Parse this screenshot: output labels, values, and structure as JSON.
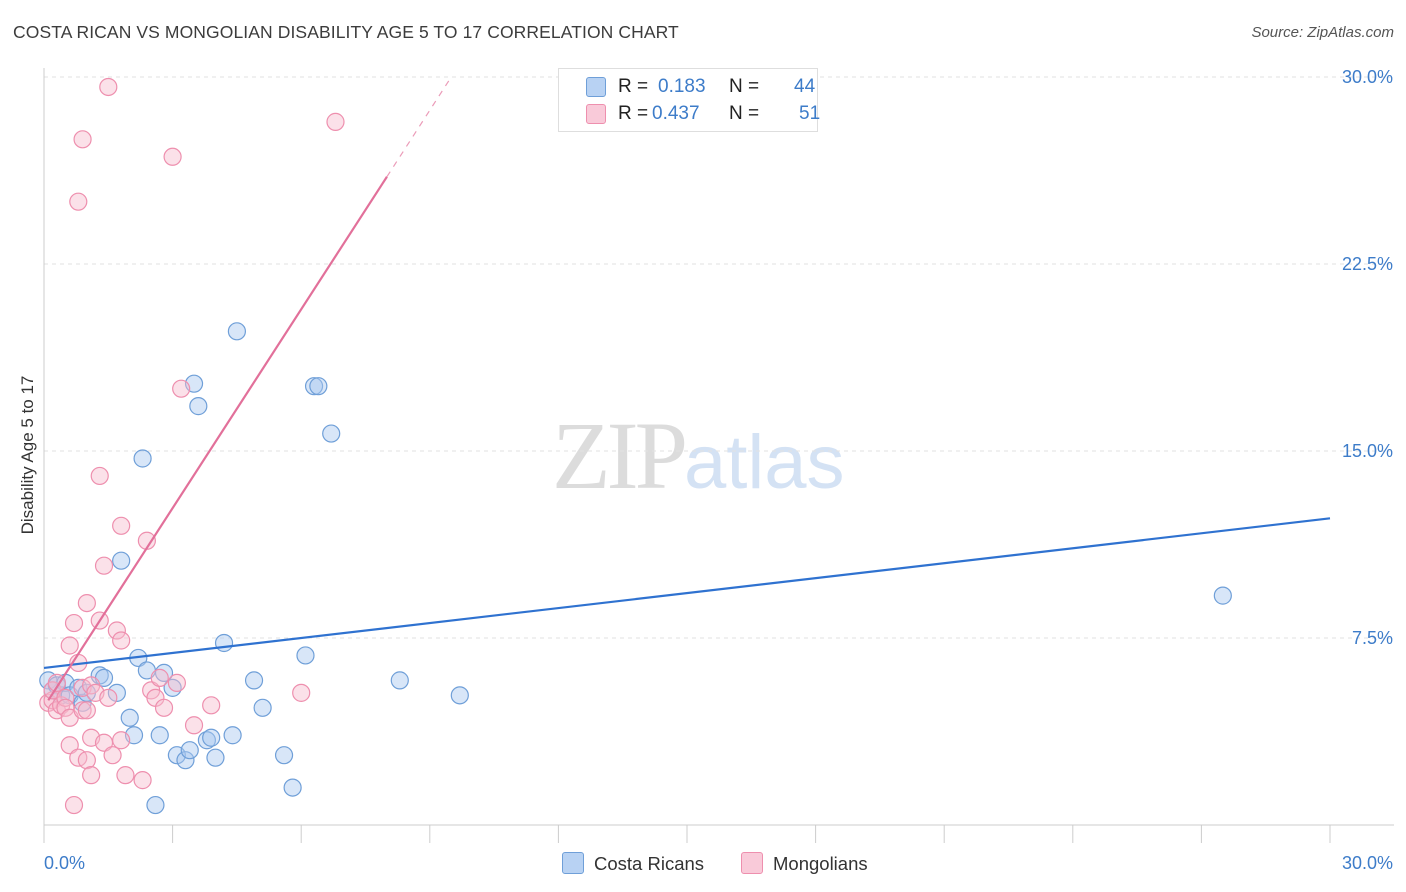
{
  "title": "COSTA RICAN VS MONGOLIAN DISABILITY AGE 5 TO 17 CORRELATION CHART",
  "source": "Source: ZipAtlas.com",
  "watermark": {
    "zip": "ZIP",
    "atlas": "atlas"
  },
  "legend": {
    "r_label": "R =",
    "n_label": "N =",
    "series": [
      {
        "name": "Costa Ricans",
        "r": "0.183",
        "n": "44"
      },
      {
        "name": "Mongolians",
        "r": "0.437",
        "n": "51"
      }
    ]
  },
  "colors": {
    "blue_fill": "#a9c8ef",
    "blue_stroke": "#6f9fd8",
    "blue_line": "#2f72d0",
    "pink_fill": "#f7bccf",
    "pink_stroke": "#ee8fae",
    "pink_line": "#e2709a",
    "grid": "#e2e2e2",
    "axis": "#cccccc",
    "tick_text": "#3d7cc9"
  },
  "chart_data": {
    "type": "scatter",
    "title": "COSTA RICAN VS MONGOLIAN DISABILITY AGE 5 TO 17 CORRELATION CHART",
    "xlabel": "",
    "ylabel": "Disability Age 5 to 17",
    "xlim": [
      0,
      30
    ],
    "ylim": [
      0,
      30
    ],
    "x_tick_labels": [
      "0.0%",
      "30.0%"
    ],
    "y_ticks": [
      7.5,
      15.0,
      22.5,
      30.0
    ],
    "y_tick_labels": [
      "7.5%",
      "15.0%",
      "22.5%",
      "30.0%"
    ],
    "grid": true,
    "series": [
      {
        "name": "Costa Ricans",
        "color": "#6f9fd8",
        "trend": {
          "x": [
            0,
            30
          ],
          "y": [
            6.3,
            12.3
          ]
        },
        "points": [
          [
            0.1,
            5.8
          ],
          [
            0.2,
            5.4
          ],
          [
            0.3,
            5.6
          ],
          [
            0.4,
            5.2
          ],
          [
            0.5,
            5.7
          ],
          [
            0.6,
            5.2
          ],
          [
            0.8,
            5.5
          ],
          [
            0.9,
            4.9
          ],
          [
            1.0,
            5.3
          ],
          [
            1.3,
            6.0
          ],
          [
            1.4,
            5.9
          ],
          [
            1.7,
            5.3
          ],
          [
            1.8,
            10.6
          ],
          [
            2.0,
            4.3
          ],
          [
            2.1,
            3.6
          ],
          [
            2.2,
            6.7
          ],
          [
            2.3,
            14.7
          ],
          [
            2.4,
            6.2
          ],
          [
            2.6,
            0.8
          ],
          [
            2.7,
            3.6
          ],
          [
            2.8,
            6.1
          ],
          [
            3.0,
            5.5
          ],
          [
            3.1,
            2.8
          ],
          [
            3.3,
            2.6
          ],
          [
            3.4,
            3.0
          ],
          [
            3.5,
            17.7
          ],
          [
            3.6,
            16.8
          ],
          [
            3.8,
            3.4
          ],
          [
            3.9,
            3.5
          ],
          [
            4.0,
            2.7
          ],
          [
            4.2,
            7.3
          ],
          [
            4.4,
            3.6
          ],
          [
            4.5,
            19.8
          ],
          [
            4.9,
            5.8
          ],
          [
            5.1,
            4.7
          ],
          [
            5.6,
            2.8
          ],
          [
            5.8,
            1.5
          ],
          [
            6.1,
            6.8
          ],
          [
            6.3,
            17.6
          ],
          [
            6.4,
            17.6
          ],
          [
            6.7,
            15.7
          ],
          [
            8.3,
            5.8
          ],
          [
            9.7,
            5.2
          ],
          [
            27.5,
            9.2
          ]
        ]
      },
      {
        "name": "Mongolians",
        "color": "#ee8fae",
        "trend": {
          "x": [
            0.1,
            8.0
          ],
          "y": [
            5.0,
            26.0
          ]
        },
        "trend_dashed": {
          "x": [
            8.0,
            9.5
          ],
          "y": [
            26.0,
            30.0
          ]
        },
        "points": [
          [
            0.1,
            4.9
          ],
          [
            0.2,
            5.0
          ],
          [
            0.2,
            5.4
          ],
          [
            0.3,
            4.6
          ],
          [
            0.3,
            5.7
          ],
          [
            0.4,
            4.8
          ],
          [
            0.5,
            5.1
          ],
          [
            0.5,
            4.7
          ],
          [
            0.6,
            3.2
          ],
          [
            0.6,
            7.2
          ],
          [
            0.6,
            4.3
          ],
          [
            0.7,
            0.8
          ],
          [
            0.7,
            8.1
          ],
          [
            0.8,
            2.7
          ],
          [
            0.8,
            6.5
          ],
          [
            0.8,
            25.0
          ],
          [
            0.9,
            27.5
          ],
          [
            0.9,
            4.6
          ],
          [
            0.9,
            5.5
          ],
          [
            1.0,
            8.9
          ],
          [
            1.0,
            2.6
          ],
          [
            1.0,
            4.6
          ],
          [
            1.1,
            3.5
          ],
          [
            1.1,
            2.0
          ],
          [
            1.1,
            5.6
          ],
          [
            1.2,
            5.3
          ],
          [
            1.3,
            14.0
          ],
          [
            1.3,
            8.2
          ],
          [
            1.4,
            10.4
          ],
          [
            1.4,
            3.3
          ],
          [
            1.5,
            5.1
          ],
          [
            1.5,
            29.6
          ],
          [
            1.6,
            2.8
          ],
          [
            1.7,
            7.8
          ],
          [
            1.8,
            3.4
          ],
          [
            1.8,
            12.0
          ],
          [
            1.8,
            7.4
          ],
          [
            1.9,
            2.0
          ],
          [
            2.3,
            1.8
          ],
          [
            2.4,
            11.4
          ],
          [
            2.5,
            5.4
          ],
          [
            2.6,
            5.1
          ],
          [
            2.7,
            5.9
          ],
          [
            2.8,
            4.7
          ],
          [
            3.0,
            26.8
          ],
          [
            3.1,
            5.7
          ],
          [
            3.2,
            17.5
          ],
          [
            3.5,
            4.0
          ],
          [
            3.9,
            4.8
          ],
          [
            6.0,
            5.3
          ],
          [
            6.8,
            28.2
          ]
        ]
      }
    ]
  }
}
